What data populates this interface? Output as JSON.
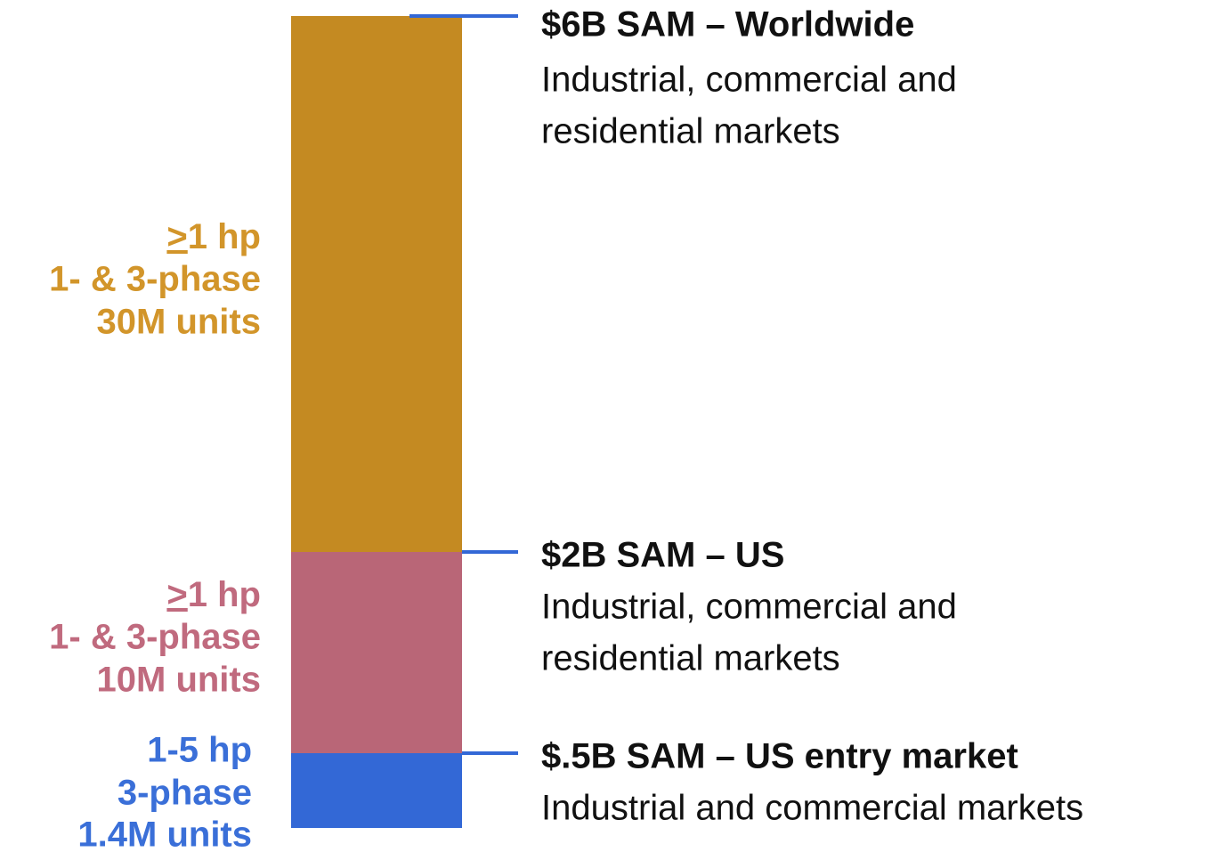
{
  "segments": [
    {
      "lines": [
        {
          "prefix": ">",
          "text": "1 hp"
        },
        "1- & 3-phase",
        "30M units"
      ]
    },
    {
      "lines": [
        {
          "prefix": ">",
          "text": "1 hp"
        },
        "1- & 3-phase",
        "10M units"
      ]
    },
    {
      "lines": [
        "1-5 hp",
        "3-phase",
        "1.4M units"
      ]
    }
  ],
  "callouts": [
    {
      "title": "$6B SAM – Worldwide",
      "description": [
        "Industrial, commercial and",
        "residential markets"
      ]
    },
    {
      "title": "$2B SAM – US",
      "description": [
        "Industrial, commercial and",
        "residential markets"
      ]
    },
    {
      "title": "$.5B SAM – US entry market",
      "description": [
        "Industrial and commercial markets"
      ]
    }
  ]
}
